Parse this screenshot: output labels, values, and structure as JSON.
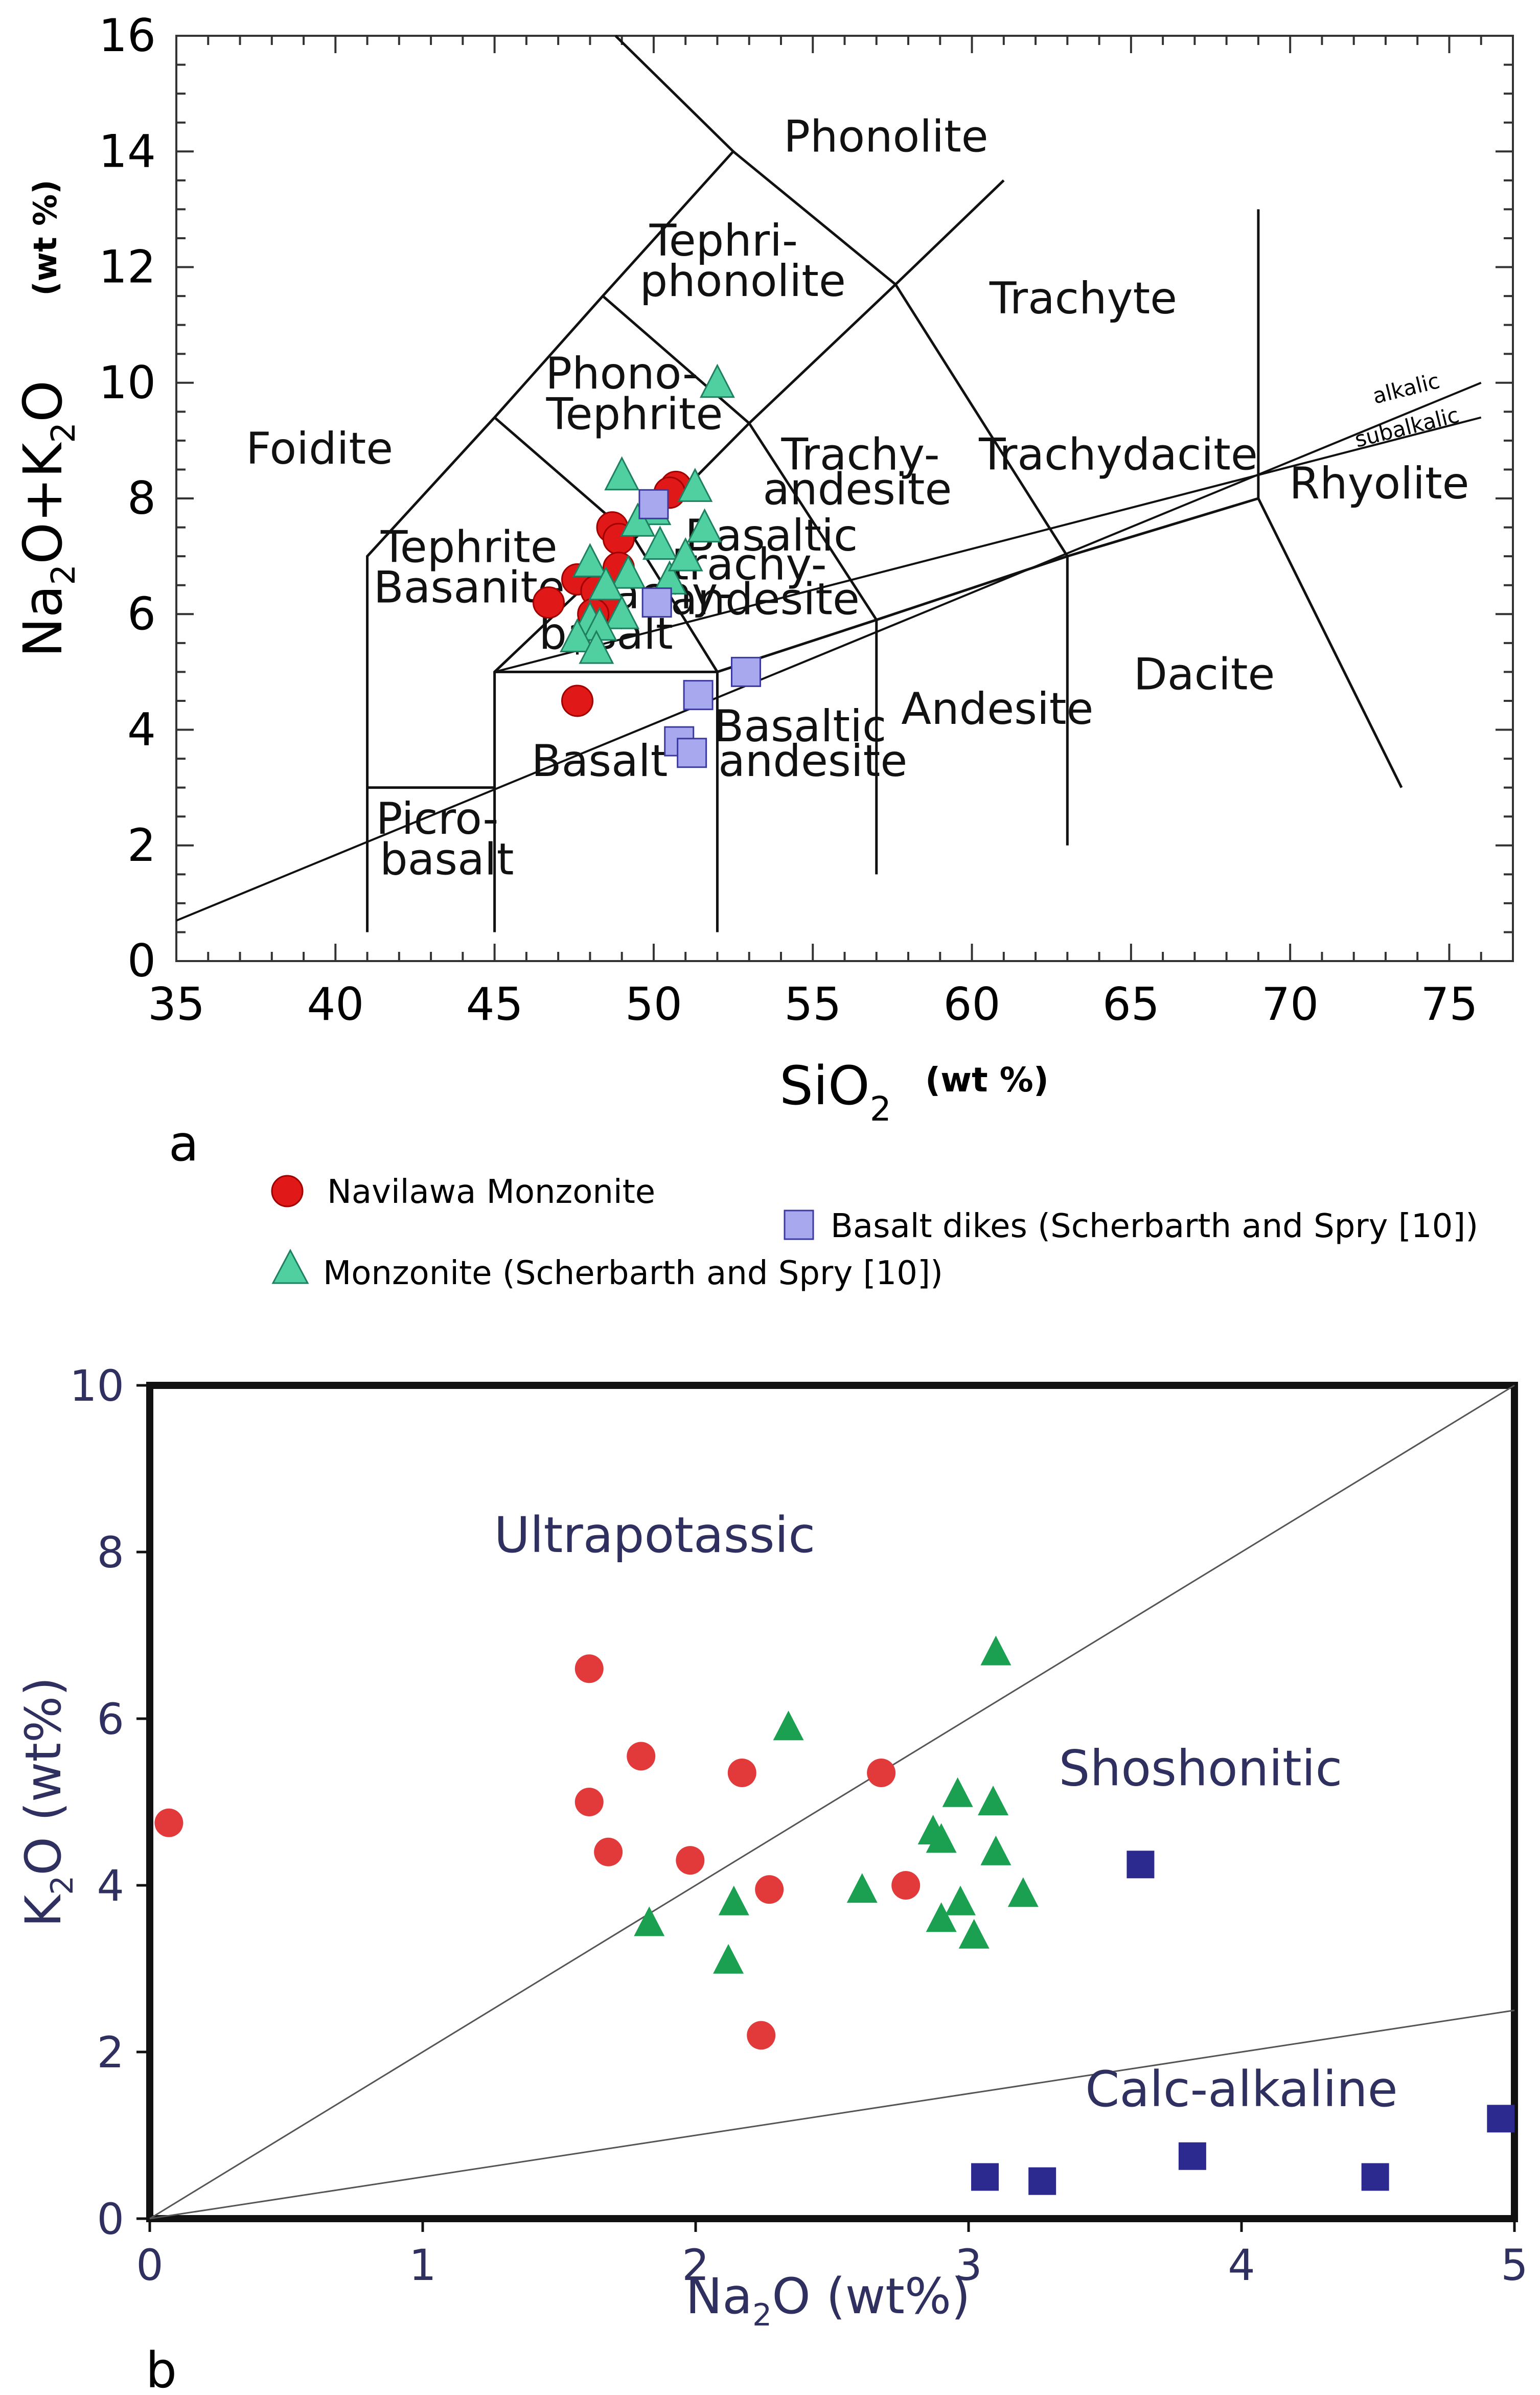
{
  "colors": {
    "navilawa": "#e01818",
    "navilawa_stroke": "#a00000",
    "monzonite_a": "#50d0a0",
    "monzonite_a_stroke": "#1e8060",
    "basalt_dike_a": "#a8a8ee",
    "basalt_dike_a_stroke": "#3a3aa0",
    "navilawa_b": "#e23a3a",
    "monzonite_b": "#1aa050",
    "basalt_dike_b": "#2c2a8e",
    "axis_title_b": "#303060"
  },
  "legend": {
    "navilawa": {
      "label": "Navilawa Monzonite",
      "marker": "red-circle"
    },
    "basalt_dikes": {
      "label": "Basalt dikes (Scherbarth and Spry [10])",
      "marker": "blue-square"
    },
    "monzonite": {
      "label": "Monzonite (Scherbarth and Spry [10])",
      "marker": "green-triangle"
    }
  },
  "chart_data": [
    {
      "panel": "a",
      "type": "scatter",
      "title": "",
      "xlabel": {
        "main": "SiO",
        "sub": "2",
        "unit": "(wt %)"
      },
      "ylabel": {
        "parts": [
          "Na",
          "2",
          "O+K",
          "2",
          "O"
        ],
        "unit": "(wt %)"
      },
      "xlim": [
        35,
        77
      ],
      "ylim": [
        0,
        16
      ],
      "xticks": [
        35,
        40,
        45,
        50,
        55,
        60,
        65,
        70,
        75
      ],
      "yticks": [
        0,
        2,
        4,
        6,
        8,
        10,
        12,
        14,
        16
      ],
      "field_boundaries": [
        [
          [
            41,
            0.5
          ],
          [
            41,
            7
          ],
          [
            45,
            9.4
          ],
          [
            48.4,
            11.5
          ],
          [
            52.5,
            14
          ],
          [
            48.8,
            16
          ]
        ],
        [
          [
            45,
            0.5
          ],
          [
            45,
            5
          ],
          [
            49.4,
            7.3
          ],
          [
            53,
            9.3
          ],
          [
            57.6,
            11.7
          ],
          [
            61,
            13.5
          ]
        ],
        [
          [
            52,
            0.5
          ],
          [
            52,
            5
          ],
          [
            57,
            5.9
          ],
          [
            63,
            7
          ],
          [
            69,
            8
          ]
        ],
        [
          [
            45,
            5
          ],
          [
            52,
            5
          ]
        ],
        [
          [
            41,
            3
          ],
          [
            45,
            3
          ]
        ],
        [
          [
            45,
            9.4
          ],
          [
            49.4,
            7.3
          ]
        ],
        [
          [
            48.4,
            11.5
          ],
          [
            53,
            9.3
          ]
        ],
        [
          [
            52.5,
            14
          ],
          [
            57.6,
            11.7
          ]
        ],
        [
          [
            49.4,
            7.3
          ],
          [
            52,
            5
          ]
        ],
        [
          [
            53,
            9.3
          ],
          [
            57,
            5.9
          ]
        ],
        [
          [
            57.6,
            11.7
          ],
          [
            63,
            7
          ]
        ],
        [
          [
            57,
            1.5
          ],
          [
            57,
            5.9
          ]
        ],
        [
          [
            63,
            2
          ],
          [
            63,
            7
          ]
        ],
        [
          [
            69,
            13
          ],
          [
            69,
            8
          ],
          [
            73.5,
            3
          ]
        ],
        [
          [
            47.6,
            5.3
          ],
          [
            47.6,
            5.6
          ]
        ]
      ],
      "divider_lines": [
        [
          [
            35,
            0.7
          ],
          [
            76,
            10
          ]
        ],
        [
          [
            45,
            5
          ],
          [
            76,
            9.4
          ]
        ]
      ],
      "divider_labels": [
        "alkalic",
        "subalkalic"
      ],
      "field_labels": [
        {
          "text": "Phonolite",
          "x": 57.3,
          "y": 14.0
        },
        {
          "text": "Tephri-",
          "x": 52.2,
          "y": 12.2
        },
        {
          "text": "phonolite",
          "x": 52.8,
          "y": 11.5
        },
        {
          "text": "Trachyte",
          "x": 63.5,
          "y": 11.2
        },
        {
          "text": "Phono-",
          "x": 49.0,
          "y": 9.9
        },
        {
          "text": "Tephrite",
          "x": 49.4,
          "y": 9.2
        },
        {
          "text": "Foidite",
          "x": 39.5,
          "y": 8.6
        },
        {
          "text": "Trachy-",
          "x": 56.5,
          "y": 8.5
        },
        {
          "text": "andesite",
          "x": 56.4,
          "y": 7.9
        },
        {
          "text": "Trachydacite",
          "x": 64.6,
          "y": 8.5
        },
        {
          "text": "Rhyolite",
          "x": 72.8,
          "y": 8.0
        },
        {
          "text": "Basaltic",
          "x": 53.7,
          "y": 7.1
        },
        {
          "text": "trachy-",
          "x": 53.0,
          "y": 6.6
        },
        {
          "text": "andesite",
          "x": 53.5,
          "y": 6.0
        },
        {
          "text": "Tephrite",
          "x": 44.2,
          "y": 6.9
        },
        {
          "text": "Basanite",
          "x": 44.2,
          "y": 6.2
        },
        {
          "text": "Trachy-",
          "x": 50.0,
          "y": 6.1
        },
        {
          "text": "basalt",
          "x": 48.5,
          "y": 5.4
        },
        {
          "text": "Dacite",
          "x": 67.3,
          "y": 4.7
        },
        {
          "text": "Andesite",
          "x": 60.8,
          "y": 4.1
        },
        {
          "text": "Basaltic",
          "x": 54.6,
          "y": 3.8
        },
        {
          "text": "andesite",
          "x": 55.0,
          "y": 3.2
        },
        {
          "text": "Basalt",
          "x": 48.3,
          "y": 3.2
        },
        {
          "text": "Picro-",
          "x": 43.2,
          "y": 2.2
        },
        {
          "text": "basalt",
          "x": 43.5,
          "y": 1.5
        }
      ],
      "series": [
        {
          "name": "Navilawa Monzonite",
          "marker": "circle",
          "points": [
            [
              50.7,
              8.2
            ],
            [
              50.5,
              8.1
            ],
            [
              48.7,
              7.5
            ],
            [
              48.9,
              7.3
            ],
            [
              47.6,
              6.6
            ],
            [
              48.9,
              6.8
            ],
            [
              48.2,
              6.4
            ],
            [
              48.5,
              6.1
            ],
            [
              46.7,
              6.2
            ],
            [
              48.1,
              6.0
            ],
            [
              47.6,
              4.5
            ]
          ]
        },
        {
          "name": "Monzonite (Scherbarth and Spry [10])",
          "marker": "triangle",
          "points": [
            [
              52.0,
              10.0
            ],
            [
              49.0,
              8.4
            ],
            [
              51.3,
              8.2
            ],
            [
              50.0,
              7.8
            ],
            [
              49.5,
              7.6
            ],
            [
              51.6,
              7.5
            ],
            [
              50.2,
              7.2
            ],
            [
              48.0,
              6.9
            ],
            [
              49.2,
              6.7
            ],
            [
              48.5,
              6.5
            ],
            [
              50.5,
              6.6
            ],
            [
              51.0,
              7.0
            ],
            [
              49.0,
              6.0
            ],
            [
              48.0,
              5.9
            ],
            [
              48.3,
              5.8
            ],
            [
              47.6,
              5.6
            ],
            [
              48.2,
              5.4
            ]
          ]
        },
        {
          "name": "Basalt dikes (Scherbarth and Spry [10])",
          "marker": "square",
          "points": [
            [
              50.0,
              7.9
            ],
            [
              50.1,
              6.2
            ],
            [
              51.4,
              4.6
            ],
            [
              52.9,
              5.0
            ],
            [
              50.8,
              3.8
            ],
            [
              51.2,
              3.6
            ]
          ]
        }
      ]
    },
    {
      "panel": "b",
      "type": "scatter",
      "title": "",
      "xlabel": {
        "main": "Na",
        "sub": "2",
        "rest": "O (wt%)"
      },
      "ylabel": {
        "main": "K",
        "sub": "2",
        "rest": "O (wt%)"
      },
      "xlim": [
        0,
        5
      ],
      "ylim": [
        0,
        10
      ],
      "xticks": [
        0,
        1,
        2,
        3,
        4,
        5
      ],
      "yticks": [
        0,
        2,
        4,
        6,
        8,
        10
      ],
      "region_lines": [
        [
          [
            0,
            0
          ],
          [
            5,
            10
          ]
        ],
        [
          [
            0,
            0
          ],
          [
            5,
            2.5
          ]
        ]
      ],
      "region_labels": [
        {
          "text": "Ultrapotassic",
          "x": 1.85,
          "y": 8.0
        },
        {
          "text": "Shoshonitic",
          "x": 3.85,
          "y": 5.2
        },
        {
          "text": "Calc-alkaline",
          "x": 4.0,
          "y": 1.35
        }
      ],
      "series": [
        {
          "name": "Navilawa Monzonite",
          "marker": "circle",
          "points": [
            [
              0.07,
              4.75
            ],
            [
              1.61,
              6.6
            ],
            [
              1.8,
              5.55
            ],
            [
              1.61,
              5.0
            ],
            [
              1.68,
              4.4
            ],
            [
              1.98,
              4.3
            ],
            [
              2.17,
              5.35
            ],
            [
              2.27,
              3.95
            ],
            [
              2.68,
              5.35
            ],
            [
              2.77,
              4.0
            ],
            [
              2.24,
              2.2
            ]
          ]
        },
        {
          "name": "Monzonite (Scherbarth and Spry [10])",
          "marker": "triangle",
          "points": [
            [
              1.83,
              3.55
            ],
            [
              2.14,
              3.8
            ],
            [
              2.12,
              3.1
            ],
            [
              2.34,
              5.9
            ],
            [
              2.61,
              3.95
            ],
            [
              2.87,
              4.65
            ],
            [
              2.9,
              4.55
            ],
            [
              2.96,
              5.1
            ],
            [
              3.09,
              5.0
            ],
            [
              3.1,
              4.4
            ],
            [
              2.9,
              3.6
            ],
            [
              2.97,
              3.8
            ],
            [
              3.02,
              3.4
            ],
            [
              3.2,
              3.9
            ],
            [
              3.1,
              6.8
            ]
          ]
        },
        {
          "name": "Basalt dikes (Scherbarth and Spry [10])",
          "marker": "square",
          "points": [
            [
              3.63,
              4.25
            ],
            [
              3.06,
              0.5
            ],
            [
              3.27,
              0.45
            ],
            [
              3.82,
              0.75
            ],
            [
              4.49,
              0.5
            ],
            [
              4.95,
              1.2
            ]
          ]
        }
      ],
      "panel_label": "b"
    }
  ],
  "panel_a_label": "a"
}
